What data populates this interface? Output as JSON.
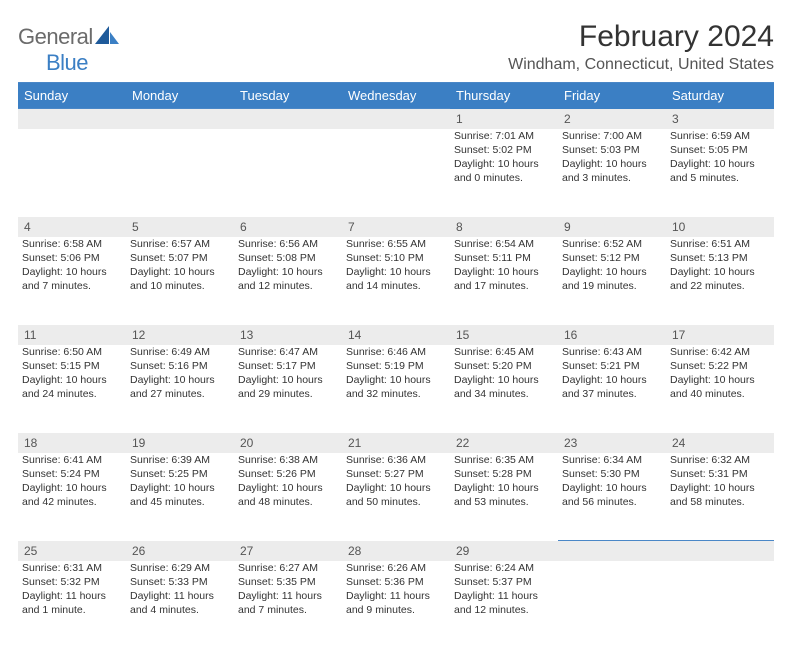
{
  "logo": {
    "part1": "General",
    "part2": "Blue"
  },
  "title": "February 2024",
  "location": "Windham, Connecticut, United States",
  "header_bg": "#3b7fc4",
  "day_headers": [
    "Sunday",
    "Monday",
    "Tuesday",
    "Wednesday",
    "Thursday",
    "Friday",
    "Saturday"
  ],
  "weeks": [
    [
      null,
      null,
      null,
      null,
      {
        "n": "1",
        "sr": "Sunrise: 7:01 AM",
        "ss": "Sunset: 5:02 PM",
        "dl": "Daylight: 10 hours and 0 minutes."
      },
      {
        "n": "2",
        "sr": "Sunrise: 7:00 AM",
        "ss": "Sunset: 5:03 PM",
        "dl": "Daylight: 10 hours and 3 minutes."
      },
      {
        "n": "3",
        "sr": "Sunrise: 6:59 AM",
        "ss": "Sunset: 5:05 PM",
        "dl": "Daylight: 10 hours and 5 minutes."
      }
    ],
    [
      {
        "n": "4",
        "sr": "Sunrise: 6:58 AM",
        "ss": "Sunset: 5:06 PM",
        "dl": "Daylight: 10 hours and 7 minutes."
      },
      {
        "n": "5",
        "sr": "Sunrise: 6:57 AM",
        "ss": "Sunset: 5:07 PM",
        "dl": "Daylight: 10 hours and 10 minutes."
      },
      {
        "n": "6",
        "sr": "Sunrise: 6:56 AM",
        "ss": "Sunset: 5:08 PM",
        "dl": "Daylight: 10 hours and 12 minutes."
      },
      {
        "n": "7",
        "sr": "Sunrise: 6:55 AM",
        "ss": "Sunset: 5:10 PM",
        "dl": "Daylight: 10 hours and 14 minutes."
      },
      {
        "n": "8",
        "sr": "Sunrise: 6:54 AM",
        "ss": "Sunset: 5:11 PM",
        "dl": "Daylight: 10 hours and 17 minutes."
      },
      {
        "n": "9",
        "sr": "Sunrise: 6:52 AM",
        "ss": "Sunset: 5:12 PM",
        "dl": "Daylight: 10 hours and 19 minutes."
      },
      {
        "n": "10",
        "sr": "Sunrise: 6:51 AM",
        "ss": "Sunset: 5:13 PM",
        "dl": "Daylight: 10 hours and 22 minutes."
      }
    ],
    [
      {
        "n": "11",
        "sr": "Sunrise: 6:50 AM",
        "ss": "Sunset: 5:15 PM",
        "dl": "Daylight: 10 hours and 24 minutes."
      },
      {
        "n": "12",
        "sr": "Sunrise: 6:49 AM",
        "ss": "Sunset: 5:16 PM",
        "dl": "Daylight: 10 hours and 27 minutes."
      },
      {
        "n": "13",
        "sr": "Sunrise: 6:47 AM",
        "ss": "Sunset: 5:17 PM",
        "dl": "Daylight: 10 hours and 29 minutes."
      },
      {
        "n": "14",
        "sr": "Sunrise: 6:46 AM",
        "ss": "Sunset: 5:19 PM",
        "dl": "Daylight: 10 hours and 32 minutes."
      },
      {
        "n": "15",
        "sr": "Sunrise: 6:45 AM",
        "ss": "Sunset: 5:20 PM",
        "dl": "Daylight: 10 hours and 34 minutes."
      },
      {
        "n": "16",
        "sr": "Sunrise: 6:43 AM",
        "ss": "Sunset: 5:21 PM",
        "dl": "Daylight: 10 hours and 37 minutes."
      },
      {
        "n": "17",
        "sr": "Sunrise: 6:42 AM",
        "ss": "Sunset: 5:22 PM",
        "dl": "Daylight: 10 hours and 40 minutes."
      }
    ],
    [
      {
        "n": "18",
        "sr": "Sunrise: 6:41 AM",
        "ss": "Sunset: 5:24 PM",
        "dl": "Daylight: 10 hours and 42 minutes."
      },
      {
        "n": "19",
        "sr": "Sunrise: 6:39 AM",
        "ss": "Sunset: 5:25 PM",
        "dl": "Daylight: 10 hours and 45 minutes."
      },
      {
        "n": "20",
        "sr": "Sunrise: 6:38 AM",
        "ss": "Sunset: 5:26 PM",
        "dl": "Daylight: 10 hours and 48 minutes."
      },
      {
        "n": "21",
        "sr": "Sunrise: 6:36 AM",
        "ss": "Sunset: 5:27 PM",
        "dl": "Daylight: 10 hours and 50 minutes."
      },
      {
        "n": "22",
        "sr": "Sunrise: 6:35 AM",
        "ss": "Sunset: 5:28 PM",
        "dl": "Daylight: 10 hours and 53 minutes."
      },
      {
        "n": "23",
        "sr": "Sunrise: 6:34 AM",
        "ss": "Sunset: 5:30 PM",
        "dl": "Daylight: 10 hours and 56 minutes."
      },
      {
        "n": "24",
        "sr": "Sunrise: 6:32 AM",
        "ss": "Sunset: 5:31 PM",
        "dl": "Daylight: 10 hours and 58 minutes."
      }
    ],
    [
      {
        "n": "25",
        "sr": "Sunrise: 6:31 AM",
        "ss": "Sunset: 5:32 PM",
        "dl": "Daylight: 11 hours and 1 minute."
      },
      {
        "n": "26",
        "sr": "Sunrise: 6:29 AM",
        "ss": "Sunset: 5:33 PM",
        "dl": "Daylight: 11 hours and 4 minutes."
      },
      {
        "n": "27",
        "sr": "Sunrise: 6:27 AM",
        "ss": "Sunset: 5:35 PM",
        "dl": "Daylight: 11 hours and 7 minutes."
      },
      {
        "n": "28",
        "sr": "Sunrise: 6:26 AM",
        "ss": "Sunset: 5:36 PM",
        "dl": "Daylight: 11 hours and 9 minutes."
      },
      {
        "n": "29",
        "sr": "Sunrise: 6:24 AM",
        "ss": "Sunset: 5:37 PM",
        "dl": "Daylight: 11 hours and 12 minutes."
      },
      null,
      null
    ]
  ]
}
